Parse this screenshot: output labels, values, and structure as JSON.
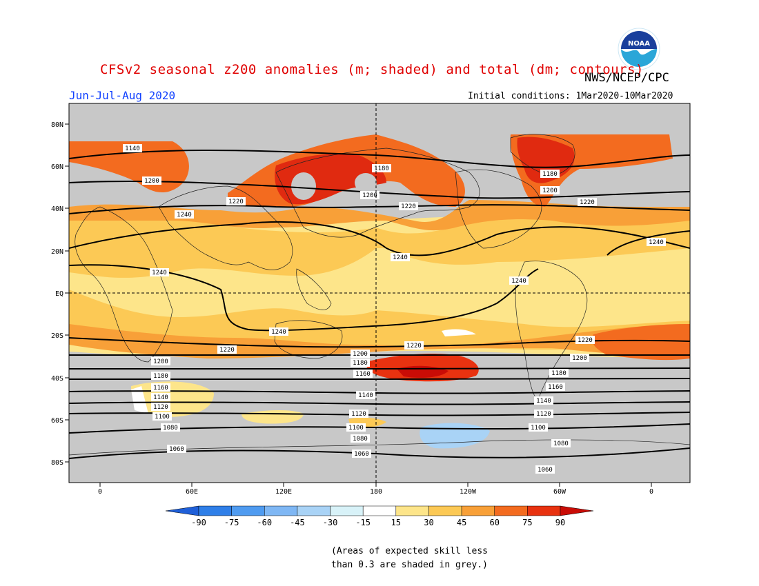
{
  "header": {
    "title": "CFSv2 seasonal z200 anomalies (m; shaded) and total (dm; contours)",
    "agency": "NWS/NCEP/CPC",
    "period": "Jun-Jul-Aug 2020",
    "initial_conditions": "Initial conditions: 1Mar2020-10Mar2020",
    "logo_text": "NOAA"
  },
  "map": {
    "lat_labels": [
      "80N",
      "60N",
      "40N",
      "20N",
      "EQ",
      "20S",
      "40S",
      "60S",
      "80S"
    ],
    "lon_labels": [
      "0",
      "60E",
      "120E",
      "180",
      "120W",
      "60W",
      "0"
    ],
    "contour_labels": [
      "1060",
      "1080",
      "1100",
      "1120",
      "1140",
      "1160",
      "1180",
      "1200",
      "1220",
      "1240"
    ]
  },
  "colorbar": {
    "labels": [
      "-90",
      "-75",
      "-60",
      "-45",
      "-30",
      "-15",
      "15",
      "30",
      "45",
      "60",
      "75",
      "90"
    ],
    "colors": [
      "#1f5fd8",
      "#2f7fe8",
      "#4f9bf0",
      "#7fb7f4",
      "#a9d3f6",
      "#d8f2f8",
      "#ffffff",
      "#fde58a",
      "#fcc955",
      "#f8a038",
      "#f36b1f",
      "#e83210",
      "#c90c06"
    ]
  },
  "footnote": {
    "line1": "(Areas of expected skill less",
    "line2": "than 0.3 are shaded in grey.)"
  }
}
